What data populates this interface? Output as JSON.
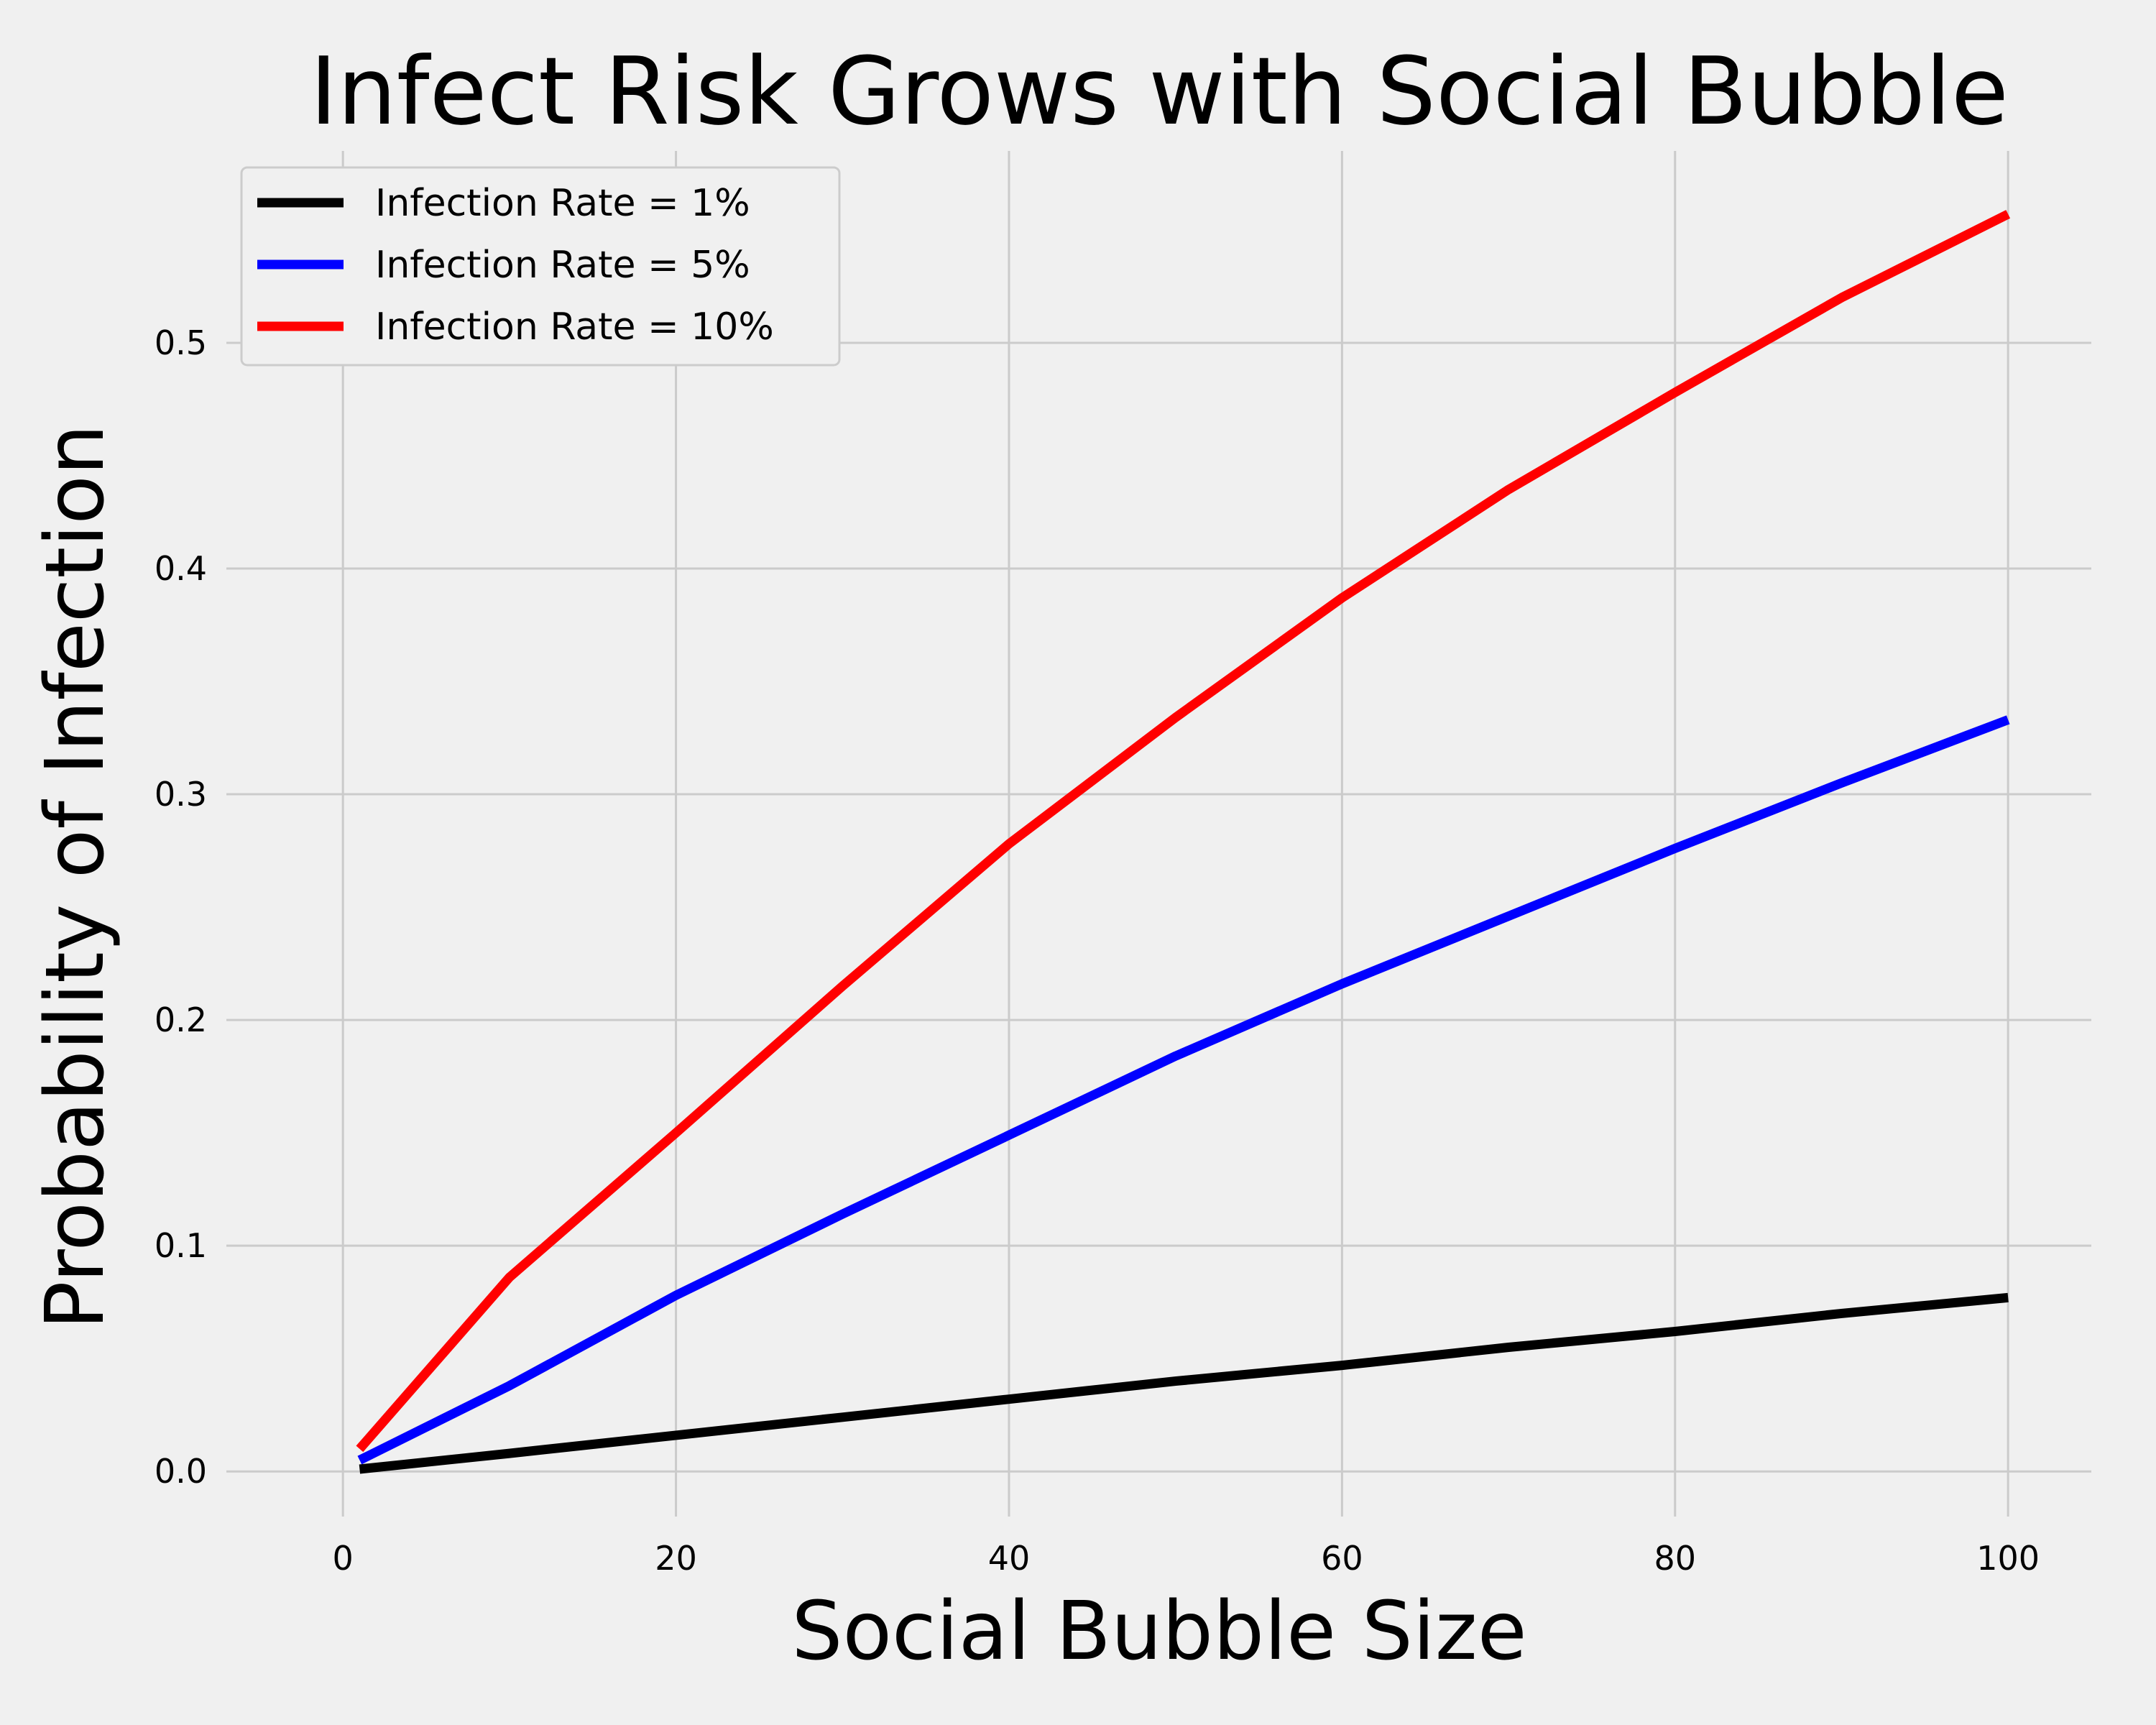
{
  "chart_data": {
    "type": "line",
    "title": "Infect Risk Grows with Social Bubble",
    "xlabel": "Social Bubble Size",
    "ylabel": "Probability of Infection",
    "xlim": [
      -7,
      105
    ],
    "ylim": [
      -0.02,
      0.585
    ],
    "xticks": [
      0,
      20,
      40,
      60,
      80,
      100
    ],
    "xtick_labels": [
      "0",
      "20",
      "40",
      "60",
      "80",
      "100"
    ],
    "yticks": [
      0.0,
      0.1,
      0.2,
      0.3,
      0.4,
      0.5
    ],
    "ytick_labels": [
      "0.0",
      "0.1",
      "0.2",
      "0.3",
      "0.4",
      "0.5"
    ],
    "grid": true,
    "legend": "top-left",
    "x": [
      1,
      10,
      20,
      30,
      40,
      50,
      60,
      70,
      80,
      90,
      100
    ],
    "series": [
      {
        "name": "Infection Rate = 1%",
        "color": "#000000",
        "values": [
          0.001,
          0.008,
          0.016,
          0.024,
          0.032,
          0.04,
          0.047,
          0.055,
          0.062,
          0.07,
          0.077
        ]
      },
      {
        "name": "Infection Rate = 5%",
        "color": "#0000ff",
        "values": [
          0.005,
          0.038,
          0.078,
          0.114,
          0.149,
          0.184,
          0.216,
          0.246,
          0.276,
          0.305,
          0.333
        ]
      },
      {
        "name": "Infection Rate = 10%",
        "color": "#ff0000",
        "values": [
          0.01,
          0.086,
          0.15,
          0.215,
          0.278,
          0.334,
          0.387,
          0.435,
          0.478,
          0.52,
          0.557
        ]
      }
    ]
  }
}
